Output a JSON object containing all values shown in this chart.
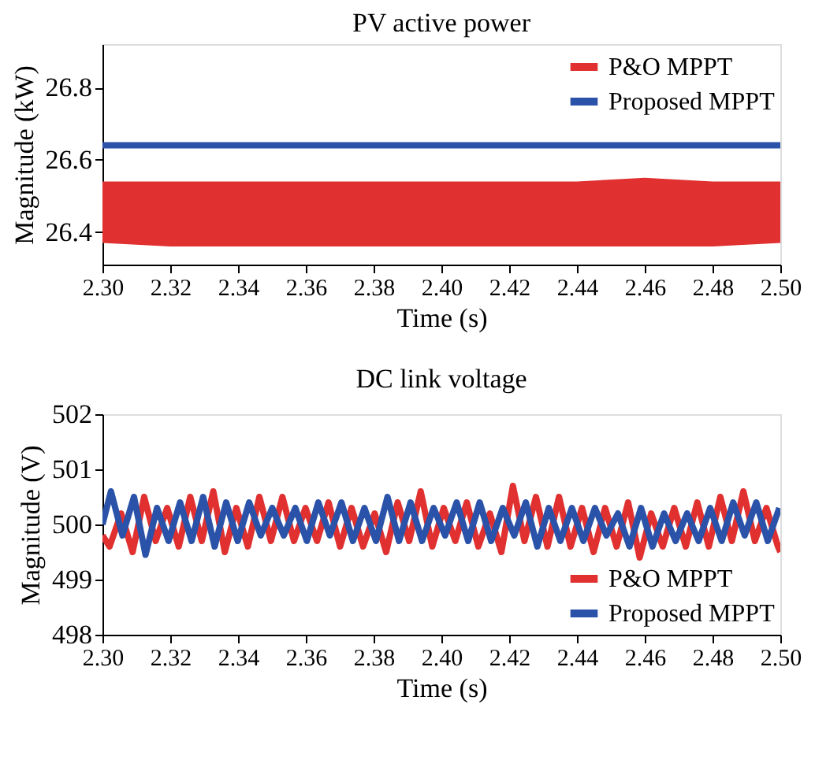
{
  "chart_data": [
    {
      "type": "line",
      "title": "PV active power",
      "xlabel": "Time (s)",
      "ylabel": "Magnitude (kW)",
      "xlim": [
        2.3,
        2.5
      ],
      "xticks": [
        {
          "value": 2.3,
          "label": "2.30"
        },
        {
          "value": 2.32,
          "label": "2.32"
        },
        {
          "value": 2.34,
          "label": "2.34"
        },
        {
          "value": 2.36,
          "label": "2.36"
        },
        {
          "value": 2.38,
          "label": "2.38"
        },
        {
          "value": 2.4,
          "label": "2.40"
        },
        {
          "value": 2.42,
          "label": "2.42"
        },
        {
          "value": 2.44,
          "label": "2.44"
        },
        {
          "value": 2.46,
          "label": "2.46"
        },
        {
          "value": 2.48,
          "label": "2.48"
        },
        {
          "value": 2.5,
          "label": "2.50"
        }
      ],
      "ylim": [
        26.31,
        26.92
      ],
      "yticks": [
        26.4,
        26.6,
        26.8
      ],
      "grid": false,
      "legend": "top right",
      "series": [
        {
          "name": "P&O MPPT",
          "color": "#e03030",
          "x": [
            2.3,
            2.32,
            2.34,
            2.36,
            2.38,
            2.4,
            2.42,
            2.44,
            2.46,
            2.48,
            2.5
          ],
          "values": [
            null,
            null,
            null,
            null,
            null,
            null,
            null,
            null,
            null,
            null,
            null
          ],
          "lower": [
            26.37,
            26.36,
            26.36,
            26.36,
            26.36,
            26.36,
            26.36,
            26.36,
            26.36,
            26.36,
            26.37
          ],
          "upper": [
            26.54,
            26.54,
            26.54,
            26.54,
            26.54,
            26.54,
            26.54,
            26.54,
            26.55,
            26.54,
            26.54
          ]
        },
        {
          "name": "Proposed MPPT",
          "color": "#2a52a8",
          "x": [
            2.3,
            2.5
          ],
          "values": [
            26.64,
            26.64
          ]
        }
      ]
    },
    {
      "type": "line",
      "title": "DC link voltage",
      "xlabel": "Time (s)",
      "ylabel": "Magnitude (V)",
      "xlim": [
        2.3,
        2.5
      ],
      "xticks": [
        {
          "value": 2.3,
          "label": "2.30"
        },
        {
          "value": 2.32,
          "label": "2.32"
        },
        {
          "value": 2.34,
          "label": "2.34"
        },
        {
          "value": 2.36,
          "label": "2.36"
        },
        {
          "value": 2.38,
          "label": "2.38"
        },
        {
          "value": 2.4,
          "label": "2.40"
        },
        {
          "value": 2.42,
          "label": "2.42"
        },
        {
          "value": 2.44,
          "label": "2.44"
        },
        {
          "value": 2.46,
          "label": "2.46"
        },
        {
          "value": 2.48,
          "label": "2.48"
        },
        {
          "value": 2.5,
          "label": "2.50"
        }
      ],
      "ylim": [
        498,
        502
      ],
      "yticks": [
        498,
        499,
        500,
        501,
        502
      ],
      "grid": false,
      "legend": "bottom right",
      "series": [
        {
          "name": "P&O MPPT",
          "color": "#e03030",
          "x": [
            2.3,
            2.3021,
            2.3055,
            2.3089,
            2.3123,
            2.3157,
            2.3191,
            2.3225,
            2.3259,
            2.3293,
            2.3327,
            2.3361,
            2.3395,
            2.3429,
            2.3463,
            2.3497,
            2.3531,
            2.3565,
            2.3599,
            2.3633,
            2.3667,
            2.3701,
            2.3735,
            2.3769,
            2.3803,
            2.3837,
            2.3871,
            2.3905,
            2.3939,
            2.3973,
            2.4007,
            2.4041,
            2.4075,
            2.4109,
            2.4143,
            2.4177,
            2.4211,
            2.4245,
            2.4279,
            2.4313,
            2.4347,
            2.4381,
            2.4415,
            2.4449,
            2.4483,
            2.4517,
            2.4551,
            2.4585,
            2.4619,
            2.4653,
            2.4687,
            2.4721,
            2.4755,
            2.4789,
            2.4823,
            2.4857,
            2.4891,
            2.4925,
            2.4959,
            2.4993,
            2.5
          ],
          "values": [
            499.8,
            499.6,
            500.2,
            499.5,
            500.5,
            499.7,
            500.3,
            499.6,
            500.5,
            499.7,
            500.6,
            499.5,
            500.3,
            499.6,
            500.5,
            499.7,
            500.5,
            499.7,
            500.3,
            499.7,
            500.4,
            499.6,
            500.3,
            499.6,
            500.2,
            499.5,
            500.4,
            499.7,
            500.6,
            499.6,
            500.3,
            499.7,
            500.4,
            499.6,
            500.2,
            499.5,
            500.7,
            499.7,
            500.5,
            499.6,
            500.5,
            499.6,
            500.3,
            499.5,
            500.3,
            499.6,
            500.4,
            499.4,
            500.2,
            499.6,
            500.3,
            499.6,
            500.4,
            499.6,
            500.5,
            499.7,
            500.6,
            499.7,
            500.3,
            499.6,
            499.5
          ]
        },
        {
          "name": "Proposed MPPT",
          "color": "#2a52a8",
          "x": [
            2.3,
            2.3025,
            2.3059,
            2.3093,
            2.3127,
            2.3161,
            2.3195,
            2.3229,
            2.3263,
            2.3297,
            2.3331,
            2.3365,
            2.3399,
            2.3433,
            2.3467,
            2.3501,
            2.3535,
            2.3569,
            2.3603,
            2.3637,
            2.3671,
            2.3705,
            2.3739,
            2.3773,
            2.3807,
            2.3841,
            2.3875,
            2.3909,
            2.3943,
            2.3977,
            2.4011,
            2.4045,
            2.4079,
            2.4113,
            2.4147,
            2.4181,
            2.4215,
            2.4249,
            2.4283,
            2.4317,
            2.4351,
            2.4385,
            2.4419,
            2.4453,
            2.4487,
            2.4521,
            2.4555,
            2.4589,
            2.4623,
            2.4657,
            2.4691,
            2.4725,
            2.4759,
            2.4793,
            2.4827,
            2.4861,
            2.4895,
            2.4929,
            2.4963,
            2.4997
          ],
          "values": [
            500.0,
            500.6,
            499.8,
            500.5,
            499.45,
            500.3,
            499.7,
            500.4,
            499.7,
            500.5,
            499.6,
            500.4,
            499.7,
            500.4,
            499.8,
            500.3,
            499.8,
            500.3,
            499.7,
            500.4,
            499.8,
            500.4,
            499.7,
            500.3,
            499.7,
            500.5,
            499.7,
            500.4,
            499.7,
            500.3,
            499.8,
            500.4,
            499.7,
            500.4,
            499.7,
            500.3,
            499.8,
            500.4,
            499.6,
            500.3,
            499.7,
            500.3,
            499.7,
            500.3,
            499.8,
            500.2,
            499.6,
            500.3,
            499.6,
            500.2,
            499.7,
            500.2,
            499.7,
            500.3,
            499.7,
            500.4,
            499.8,
            500.4,
            499.7,
            500.3
          ]
        }
      ]
    }
  ]
}
